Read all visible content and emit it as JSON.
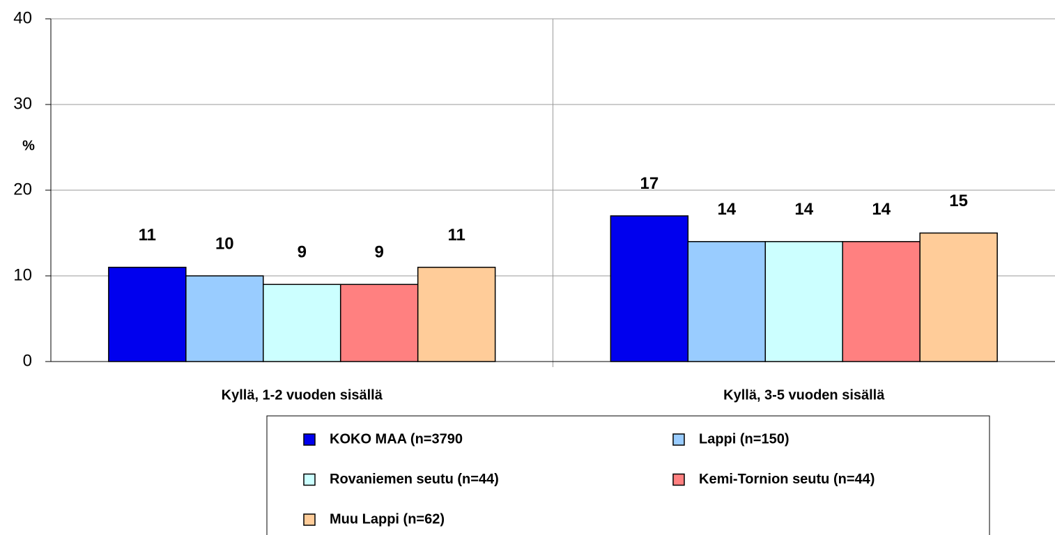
{
  "chart_data": {
    "type": "bar",
    "y_label": "%",
    "categories": [
      "Kyllä, 1-2 vuoden sisällä",
      "Kyllä, 3-5 vuoden sisällä"
    ],
    "series": [
      {
        "name": "KOKO MAA (n=3790",
        "color": "#0000ee",
        "values": [
          11,
          17
        ]
      },
      {
        "name": "Lappi (n=150)",
        "color": "#99ccff",
        "values": [
          10,
          14
        ]
      },
      {
        "name": "Rovaniemen seutu (n=44)",
        "color": "#ccffff",
        "values": [
          9,
          14
        ]
      },
      {
        "name": "Kemi-Tornion seutu (n=44)",
        "color": "#ff8080",
        "values": [
          9,
          14
        ]
      },
      {
        "name": "Muu Lappi (n=62)",
        "color": "#ffcc99",
        "values": [
          11,
          15
        ]
      }
    ],
    "ylim": [
      0,
      40
    ],
    "yticks": [
      0,
      10,
      20,
      30,
      40
    ],
    "grid": true
  }
}
